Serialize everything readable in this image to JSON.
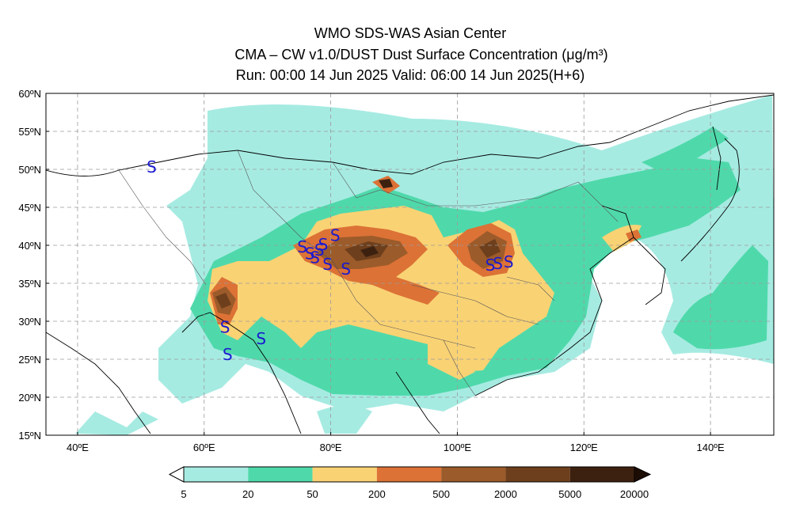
{
  "header": {
    "line1": "WMO SDS-WAS Asian Center",
    "line2": "CMA – CW v1.0/DUST Dust Surface Concentration (μg/m³)",
    "line3": "Run: 00:00 14 Jun 2025     Valid: 06:00 14 Jun 2025(H+6)"
  },
  "map": {
    "lon_range": [
      35,
      150
    ],
    "lat_range": [
      15,
      60
    ],
    "lon_ticks": [
      "40ºE",
      "60ºE",
      "80ºE",
      "100ºE",
      "120ºE",
      "140ºE"
    ],
    "lat_ticks": [
      "15ºN",
      "20ºN",
      "25ºN",
      "30ºN",
      "35ºN",
      "40ºN",
      "45ºN",
      "50ºN",
      "55ºN",
      "60ºN"
    ],
    "gridlines": "dashed",
    "station_symbol": "S"
  },
  "colorbar": {
    "labels": [
      "5",
      "20",
      "50",
      "200",
      "500",
      "2000",
      "5000",
      "20000"
    ],
    "colors": [
      "#a6ebe2",
      "#4fd9ab",
      "#f9d274",
      "#dc7236",
      "#9c5b2a",
      "#6e3f1c",
      "#3c2110"
    ],
    "under_color": "#ffffff",
    "over_color": "#1c0d04"
  },
  "colors": {
    "level1": "#a6ebe2",
    "level2": "#4fd9ab",
    "level3": "#f9d274",
    "level4": "#dc7236",
    "level5": "#9c5b2a",
    "level6": "#6e3f1c",
    "level7": "#3c2110",
    "station": "#1a1ad0"
  }
}
